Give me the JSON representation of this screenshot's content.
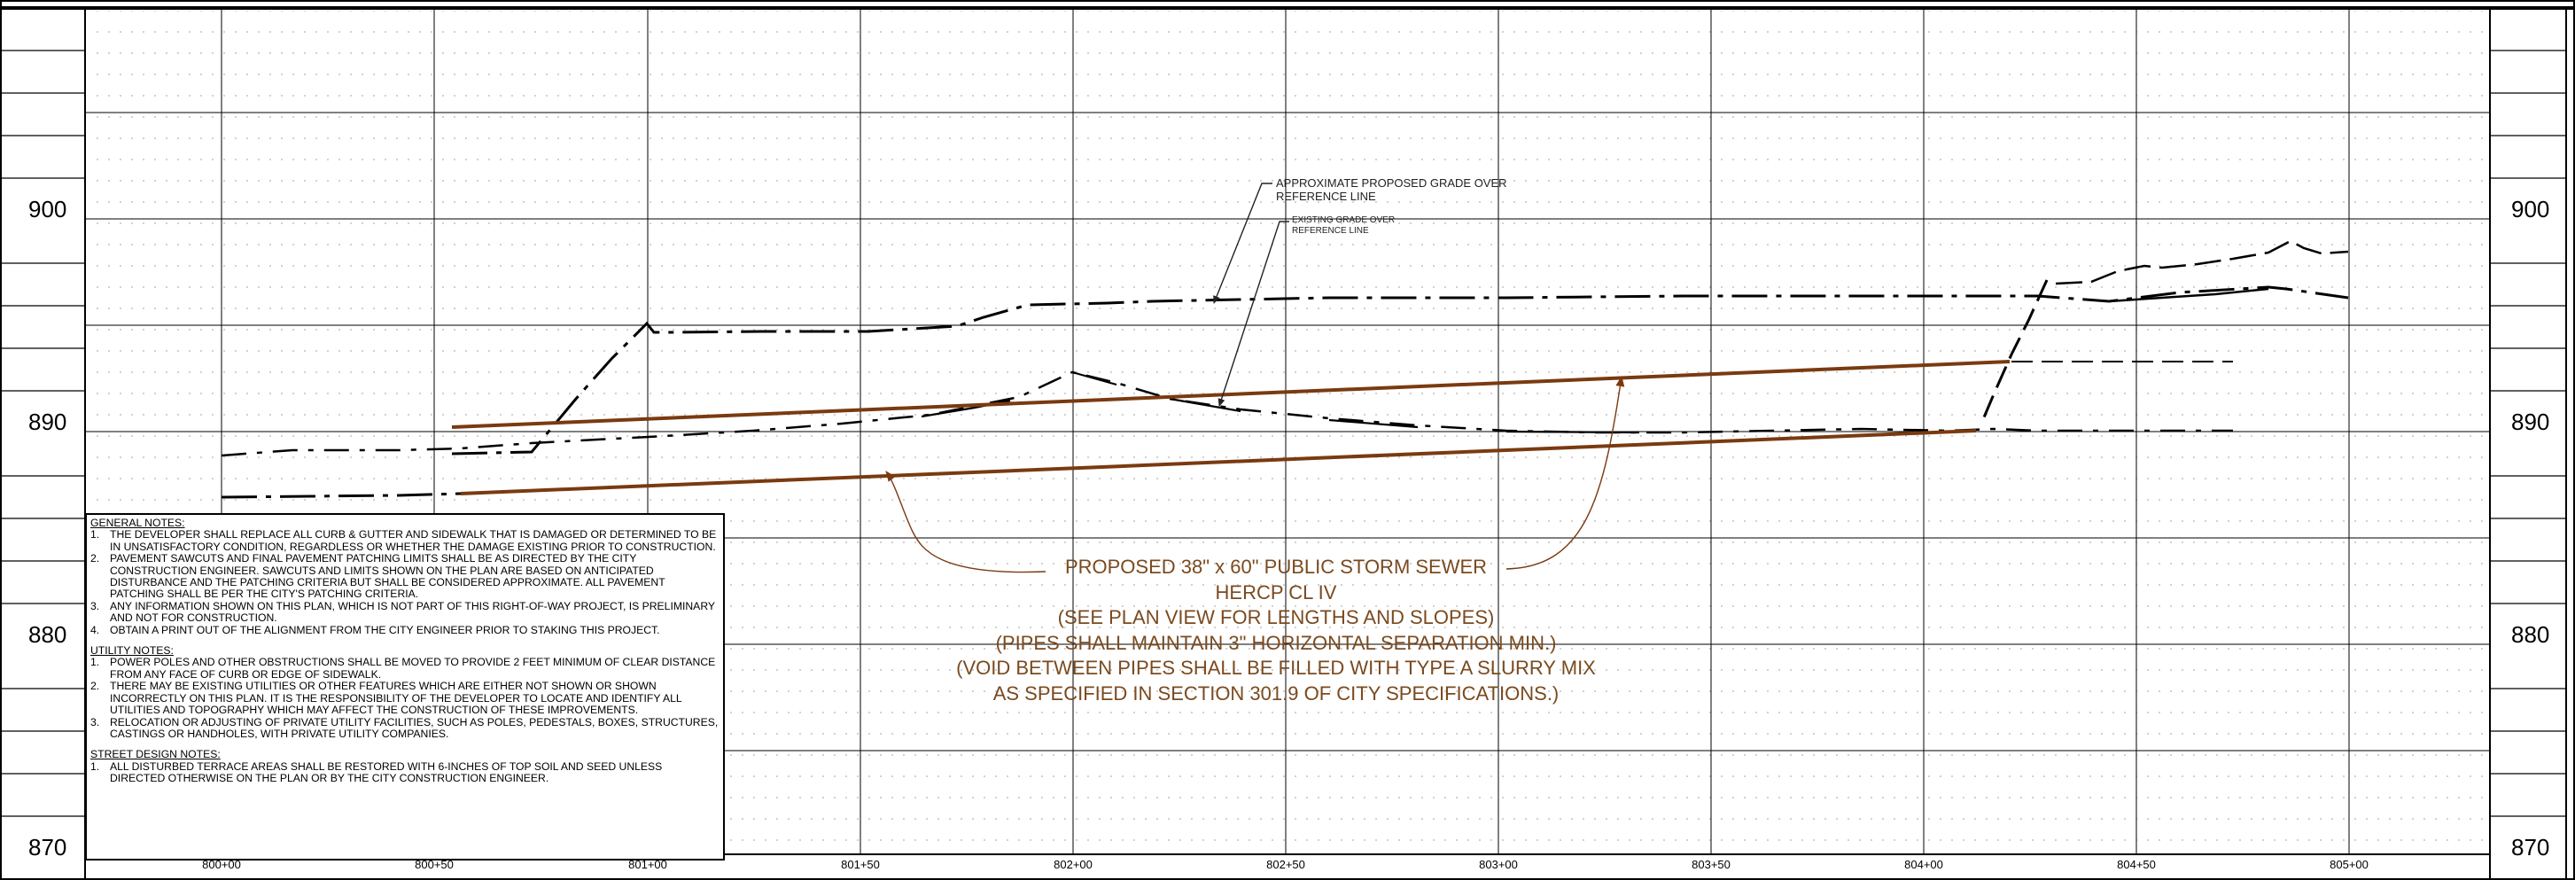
{
  "elevations": [
    "900",
    "890",
    "880",
    "870"
  ],
  "stations": [
    "800+00",
    "800+50",
    "801+00",
    "801+50",
    "802+00",
    "802+50",
    "803+00",
    "803+50",
    "804+00",
    "804+50",
    "805+00"
  ],
  "callouts": {
    "proposed_grade": [
      "APPROXIMATE PROPOSED GRADE OVER",
      "REFERENCE LINE"
    ],
    "existing_grade": [
      "EXISTING GRADE OVER",
      "REFERENCE LINE"
    ]
  },
  "sewer_label": [
    "PROPOSED 38\" x 60\" PUBLIC STORM SEWER",
    "HERCP CL IV",
    "(SEE PLAN VIEW FOR LENGTHS AND SLOPES)",
    "(PIPES SHALL MAINTAIN 3\" HORIZONTAL SEPARATION MIN.)",
    "(VOID BETWEEN PIPES SHALL BE FILLED WITH TYPE A SLURRY MIX",
    "AS SPECIFIED IN SECTION 301.9 OF CITY SPECIFICATIONS.)"
  ],
  "notes": {
    "general": {
      "heading": "GENERAL NOTES:",
      "items": [
        {
          "num": "1.",
          "text": "THE DEVELOPER SHALL REPLACE ALL CURB & GUTTER AND SIDEWALK THAT IS DAMAGED OR DETERMINED TO BE IN UNSATISFACTORY CONDITION, REGARDLESS OR WHETHER THE DAMAGE EXISTING PRIOR TO CONSTRUCTION."
        },
        {
          "num": "2.",
          "text": "PAVEMENT SAWCUTS AND FINAL PAVEMENT PATCHING LIMITS SHALL BE AS DIRECTED BY THE CITY CONSTRUCTION ENGINEER. SAWCUTS AND LIMITS SHOWN ON THE PLAN ARE BASED ON ANTICIPATED DISTURBANCE AND THE PATCHING CRITERIA BUT SHALL BE CONSIDERED APPROXIMATE. ALL PAVEMENT PATCHING SHALL BE PER THE CITY'S PATCHING CRITERIA."
        },
        {
          "num": "3.",
          "text": "ANY INFORMATION SHOWN ON THIS PLAN, WHICH IS NOT PART OF THIS RIGHT-OF-WAY PROJECT, IS PRELIMINARY AND NOT FOR CONSTRUCTION."
        },
        {
          "num": "4.",
          "text": "OBTAIN A PRINT OUT OF THE ALIGNMENT FROM THE CITY ENGINEER PRIOR TO STAKING THIS PROJECT."
        }
      ]
    },
    "utility": {
      "heading": "UTILITY NOTES:",
      "items": [
        {
          "num": "1.",
          "text": "POWER POLES AND OTHER OBSTRUCTIONS SHALL BE MOVED TO PROVIDE 2 FEET MINIMUM OF CLEAR DISTANCE FROM ANY FACE OF CURB OR EDGE OF SIDEWALK."
        },
        {
          "num": "2.",
          "text": "THERE MAY BE EXISTING UTILITIES OR OTHER FEATURES WHICH ARE EITHER NOT SHOWN OR SHOWN INCORRECTLY ON THIS PLAN. IT IS THE RESPONSIBILITY OF THE DEVELOPER TO LOCATE AND IDENTIFY ALL UTILITIES AND TOPOGRAPHY WHICH MAY AFFECT THE CONSTRUCTION OF THESE IMPROVEMENTS."
        },
        {
          "num": "3.",
          "text": "RELOCATION OR ADJUSTING OF PRIVATE UTILITY FACILITIES, SUCH AS POLES, PEDESTALS, BOXES, STRUCTURES, CASTINGS OR HANDHOLES, WITH PRIVATE UTILITY COMPANIES."
        }
      ]
    },
    "street": {
      "heading": "STREET DESIGN NOTES:",
      "items": [
        {
          "num": "1.",
          "text": "ALL DISTURBED TERRACE AREAS SHALL BE RESTORED WITH 6-INCHES OF TOP SOIL AND SEED UNLESS DIRECTED OTHERWISE ON THE PLAN OR BY THE CITY CONSTRUCTION ENGINEER."
        }
      ]
    }
  },
  "colors": {
    "pipe": "#7a3a10",
    "label": "#7a4a1f",
    "grid": "#000000"
  }
}
